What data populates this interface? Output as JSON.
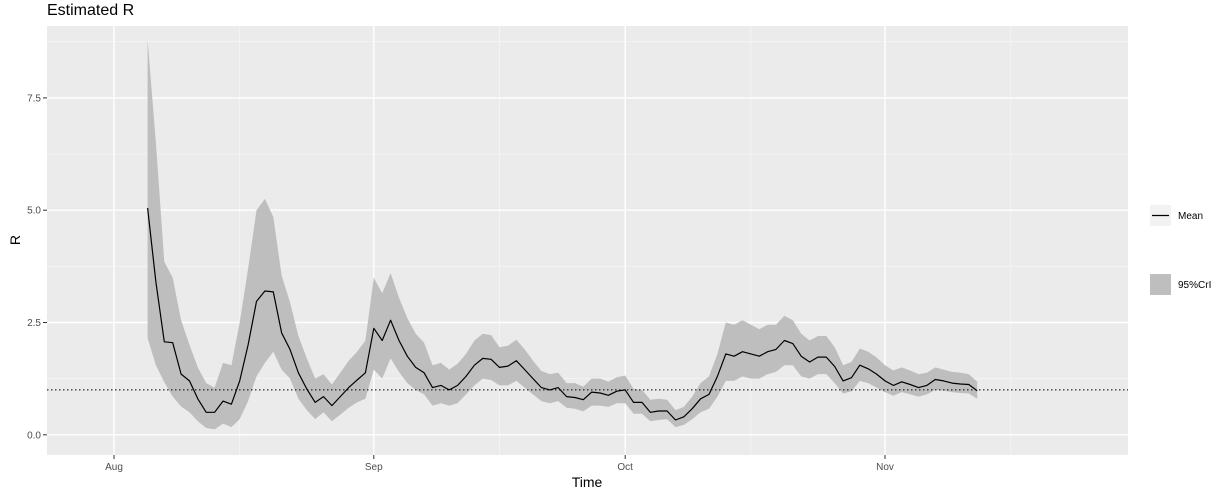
{
  "chart_data": {
    "type": "line",
    "title": "Estimated R",
    "xlabel": "Time",
    "ylabel": "R",
    "x_start": "2020-08-05",
    "x_end": "2020-11-12",
    "xlim": [
      "2020-07-24",
      "2020-11-30"
    ],
    "ylim": [
      -0.45,
      9.1
    ],
    "x_ticks": [
      {
        "date": "2020-08-01",
        "label": "Aug"
      },
      {
        "date": "2020-09-01",
        "label": "Sep"
      },
      {
        "date": "2020-10-01",
        "label": "Oct"
      },
      {
        "date": "2020-11-01",
        "label": "Nov"
      }
    ],
    "x_minor_ticks": [
      "2020-08-16",
      "2020-09-16",
      "2020-10-16",
      "2020-11-16"
    ],
    "y_ticks": [
      {
        "value": 0,
        "label": "0.0"
      },
      {
        "value": 2.5,
        "label": "2.5"
      },
      {
        "value": 5,
        "label": "5.0"
      },
      {
        "value": 7.5,
        "label": "7.5"
      }
    ],
    "reference_line": 1,
    "grid": true,
    "legend_position": "right",
    "series": [
      {
        "name": "Mean",
        "color": "#000000",
        "values": [
          5.05,
          3.4,
          2.07,
          2.05,
          1.35,
          1.2,
          0.8,
          0.5,
          0.5,
          0.75,
          0.68,
          1.2,
          2.0,
          2.97,
          3.2,
          3.18,
          2.27,
          1.9,
          1.38,
          1.02,
          0.72,
          0.85,
          0.65,
          0.85,
          1.05,
          1.22,
          1.38,
          2.37,
          2.1,
          2.55,
          2.1,
          1.75,
          1.5,
          1.38,
          1.05,
          1.1,
          1.0,
          1.1,
          1.3,
          1.55,
          1.7,
          1.68,
          1.5,
          1.53,
          1.65,
          1.45,
          1.25,
          1.05,
          1.0,
          1.05,
          0.85,
          0.83,
          0.78,
          0.95,
          0.93,
          0.88,
          0.97,
          1.0,
          0.72,
          0.72,
          0.5,
          0.53,
          0.53,
          0.33,
          0.4,
          0.58,
          0.8,
          0.9,
          1.3,
          1.8,
          1.75,
          1.85,
          1.8,
          1.75,
          1.85,
          1.9,
          2.1,
          2.03,
          1.75,
          1.62,
          1.73,
          1.73,
          1.52,
          1.2,
          1.27,
          1.55,
          1.47,
          1.35,
          1.2,
          1.1,
          1.18,
          1.12,
          1.05,
          1.1,
          1.23,
          1.2,
          1.15,
          1.13,
          1.12,
          0.98
        ]
      },
      {
        "name": "95%CrI",
        "color": "#bebebe",
        "lower": [
          2.15,
          1.55,
          1.17,
          0.85,
          0.63,
          0.5,
          0.3,
          0.15,
          0.12,
          0.25,
          0.17,
          0.35,
          0.75,
          1.3,
          1.6,
          1.85,
          1.45,
          1.25,
          0.8,
          0.55,
          0.35,
          0.5,
          0.3,
          0.45,
          0.6,
          0.72,
          0.8,
          1.45,
          1.25,
          1.7,
          1.4,
          1.15,
          1.0,
          0.9,
          0.65,
          0.7,
          0.65,
          0.7,
          0.9,
          1.1,
          1.25,
          1.22,
          1.1,
          1.1,
          1.2,
          1.05,
          0.9,
          0.75,
          0.7,
          0.75,
          0.6,
          0.58,
          0.52,
          0.65,
          0.65,
          0.62,
          0.7,
          0.7,
          0.47,
          0.47,
          0.3,
          0.33,
          0.35,
          0.17,
          0.22,
          0.35,
          0.5,
          0.58,
          0.85,
          1.2,
          1.2,
          1.3,
          1.25,
          1.25,
          1.35,
          1.4,
          1.55,
          1.55,
          1.3,
          1.25,
          1.35,
          1.35,
          1.15,
          0.92,
          0.97,
          1.2,
          1.15,
          1.05,
          0.95,
          0.87,
          0.95,
          0.9,
          0.85,
          0.9,
          1.0,
          0.98,
          0.95,
          0.93,
          0.92,
          0.8
        ],
        "upper": [
          8.8,
          6.5,
          3.85,
          3.5,
          2.55,
          2.0,
          1.5,
          1.15,
          1.05,
          1.6,
          1.55,
          2.5,
          3.7,
          5.0,
          5.25,
          4.85,
          3.55,
          2.95,
          2.2,
          1.7,
          1.25,
          1.35,
          1.12,
          1.38,
          1.65,
          1.85,
          2.1,
          3.5,
          3.15,
          3.6,
          3.05,
          2.6,
          2.25,
          2.05,
          1.55,
          1.6,
          1.45,
          1.58,
          1.8,
          2.1,
          2.25,
          2.22,
          1.95,
          1.98,
          2.12,
          1.9,
          1.65,
          1.42,
          1.35,
          1.38,
          1.15,
          1.15,
          1.07,
          1.25,
          1.25,
          1.18,
          1.28,
          1.32,
          1.02,
          1.0,
          0.78,
          0.8,
          0.78,
          0.55,
          0.62,
          0.85,
          1.15,
          1.3,
          1.8,
          2.5,
          2.45,
          2.55,
          2.45,
          2.35,
          2.45,
          2.45,
          2.65,
          2.55,
          2.25,
          2.1,
          2.2,
          2.2,
          1.95,
          1.55,
          1.62,
          1.92,
          1.85,
          1.72,
          1.55,
          1.43,
          1.5,
          1.43,
          1.35,
          1.38,
          1.5,
          1.45,
          1.4,
          1.38,
          1.35,
          1.18
        ]
      }
    ]
  }
}
